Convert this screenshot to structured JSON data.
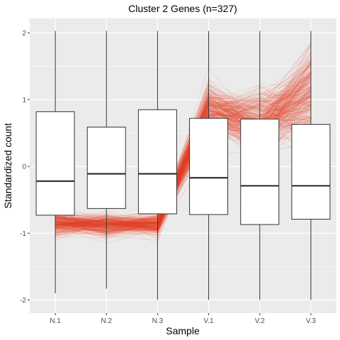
{
  "chart_data": {
    "type": "box",
    "title": "Cluster 2 Genes (n=327)",
    "xlabel": "Sample",
    "ylabel": "Standardized count",
    "categories": [
      "N.1",
      "N.2",
      "N.3",
      "V.1",
      "V.2",
      "V.3"
    ],
    "ylim": [
      -2.2,
      2.2
    ],
    "yticks": [
      -2,
      -1,
      0,
      1,
      2
    ],
    "boxes": [
      {
        "category": "N.1",
        "min": -1.9,
        "q1": -0.73,
        "median": -0.22,
        "q3": 0.82,
        "max": 2.03
      },
      {
        "category": "N.2",
        "min": -1.83,
        "q1": -0.63,
        "median": -0.11,
        "q3": 0.59,
        "max": 2.03
      },
      {
        "category": "N.3",
        "min": -2.0,
        "q1": -0.71,
        "median": -0.11,
        "q3": 0.85,
        "max": 2.03
      },
      {
        "category": "V.1",
        "min": -2.0,
        "q1": -0.72,
        "median": -0.17,
        "q3": 0.72,
        "max": 2.03
      },
      {
        "category": "V.2",
        "min": -2.0,
        "q1": -0.87,
        "median": -0.29,
        "q3": 0.71,
        "max": 2.03
      },
      {
        "category": "V.3",
        "min": -2.0,
        "q1": -0.79,
        "median": -0.29,
        "q3": 0.63,
        "max": 2.03
      }
    ],
    "profiles": {
      "count": 327,
      "mean": [
        -0.85,
        -0.87,
        -0.87,
        0.82,
        0.65,
        1.05
      ],
      "sd": [
        0.09,
        0.08,
        0.08,
        0.2,
        0.25,
        0.35
      ]
    },
    "grid": true,
    "legend": "none",
    "colors": {
      "panel": "#ebebeb",
      "grid": "#ffffff",
      "line": "#e8432a",
      "box_fill": "#ffffff",
      "box_stroke": "#333333"
    }
  }
}
